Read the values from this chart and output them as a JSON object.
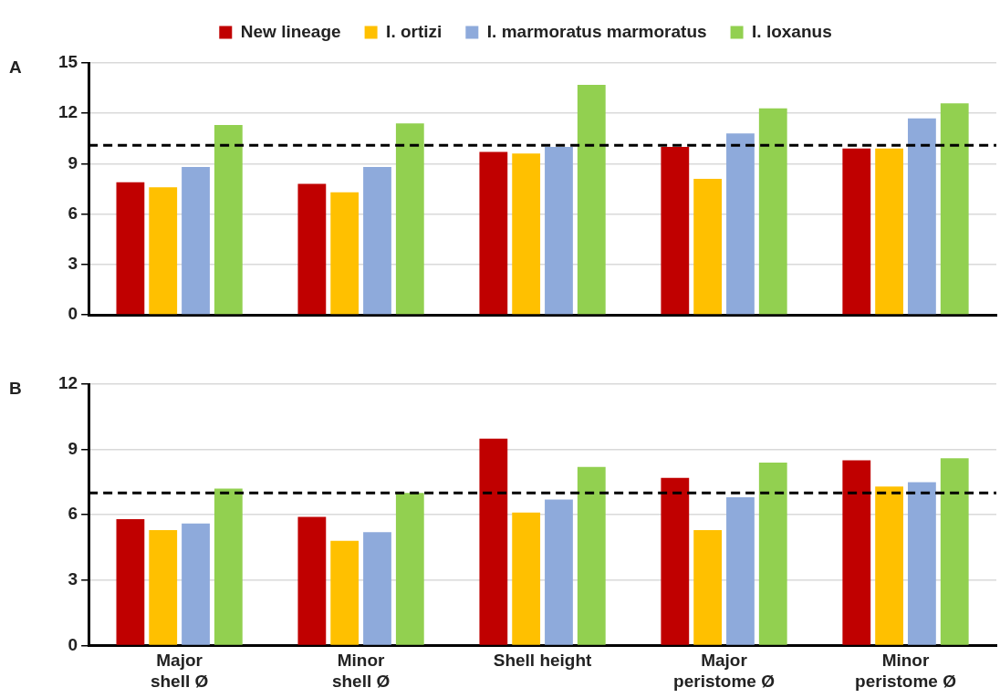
{
  "chart_data": [
    {
      "type": "bar",
      "annotations": [
        "A"
      ],
      "categories": [
        null,
        null,
        null,
        null,
        null
      ],
      "series": [
        {
          "name": "New lineage",
          "color": "#c00000",
          "values": [
            7.9,
            7.8,
            9.7,
            10.0,
            9.9
          ]
        },
        {
          "name": "I. ortizi",
          "color": "#ffc000",
          "values": [
            7.6,
            7.3,
            9.6,
            8.1,
            9.9
          ]
        },
        {
          "name": "I. marmoratus marmoratus",
          "color": "#8eaadb",
          "values": [
            8.8,
            8.8,
            10.0,
            10.8,
            11.7
          ]
        },
        {
          "name": "I. loxanus",
          "color": "#92d050",
          "values": [
            11.3,
            11.4,
            13.7,
            12.3,
            12.6
          ]
        }
      ],
      "ylim": [
        0,
        15
      ],
      "yticks": [
        0,
        3,
        6,
        9,
        12,
        15
      ],
      "grid": "y",
      "legend": "top",
      "tick_labels": "y",
      "ref_lines": [
        {
          "axis": "y",
          "value": 10.1,
          "color": "#000000",
          "line_style": "dashed"
        }
      ]
    },
    {
      "type": "bar",
      "annotations": [
        "B"
      ],
      "categories": [
        "Major shell Ø",
        "Minor shell Ø",
        "Shell height",
        "Major peristome Ø",
        "Minor peristome Ø"
      ],
      "series": [
        {
          "color": "#c00000",
          "values": [
            5.8,
            5.9,
            9.5,
            7.7,
            8.5
          ]
        },
        {
          "color": "#ffc000",
          "values": [
            5.3,
            4.8,
            6.1,
            5.3,
            7.3
          ]
        },
        {
          "color": "#8eaadb",
          "values": [
            5.6,
            5.2,
            6.7,
            6.8,
            7.5
          ]
        },
        {
          "color": "#92d050",
          "values": [
            7.2,
            7.0,
            8.2,
            8.4,
            8.6
          ]
        }
      ],
      "ylim": [
        0,
        12
      ],
      "yticks": [
        0,
        3,
        6,
        9,
        12
      ],
      "grid": "y",
      "ref_lines": [
        {
          "axis": "y",
          "value": 7.0,
          "color": "#000000",
          "line_style": "dashed"
        }
      ]
    }
  ]
}
